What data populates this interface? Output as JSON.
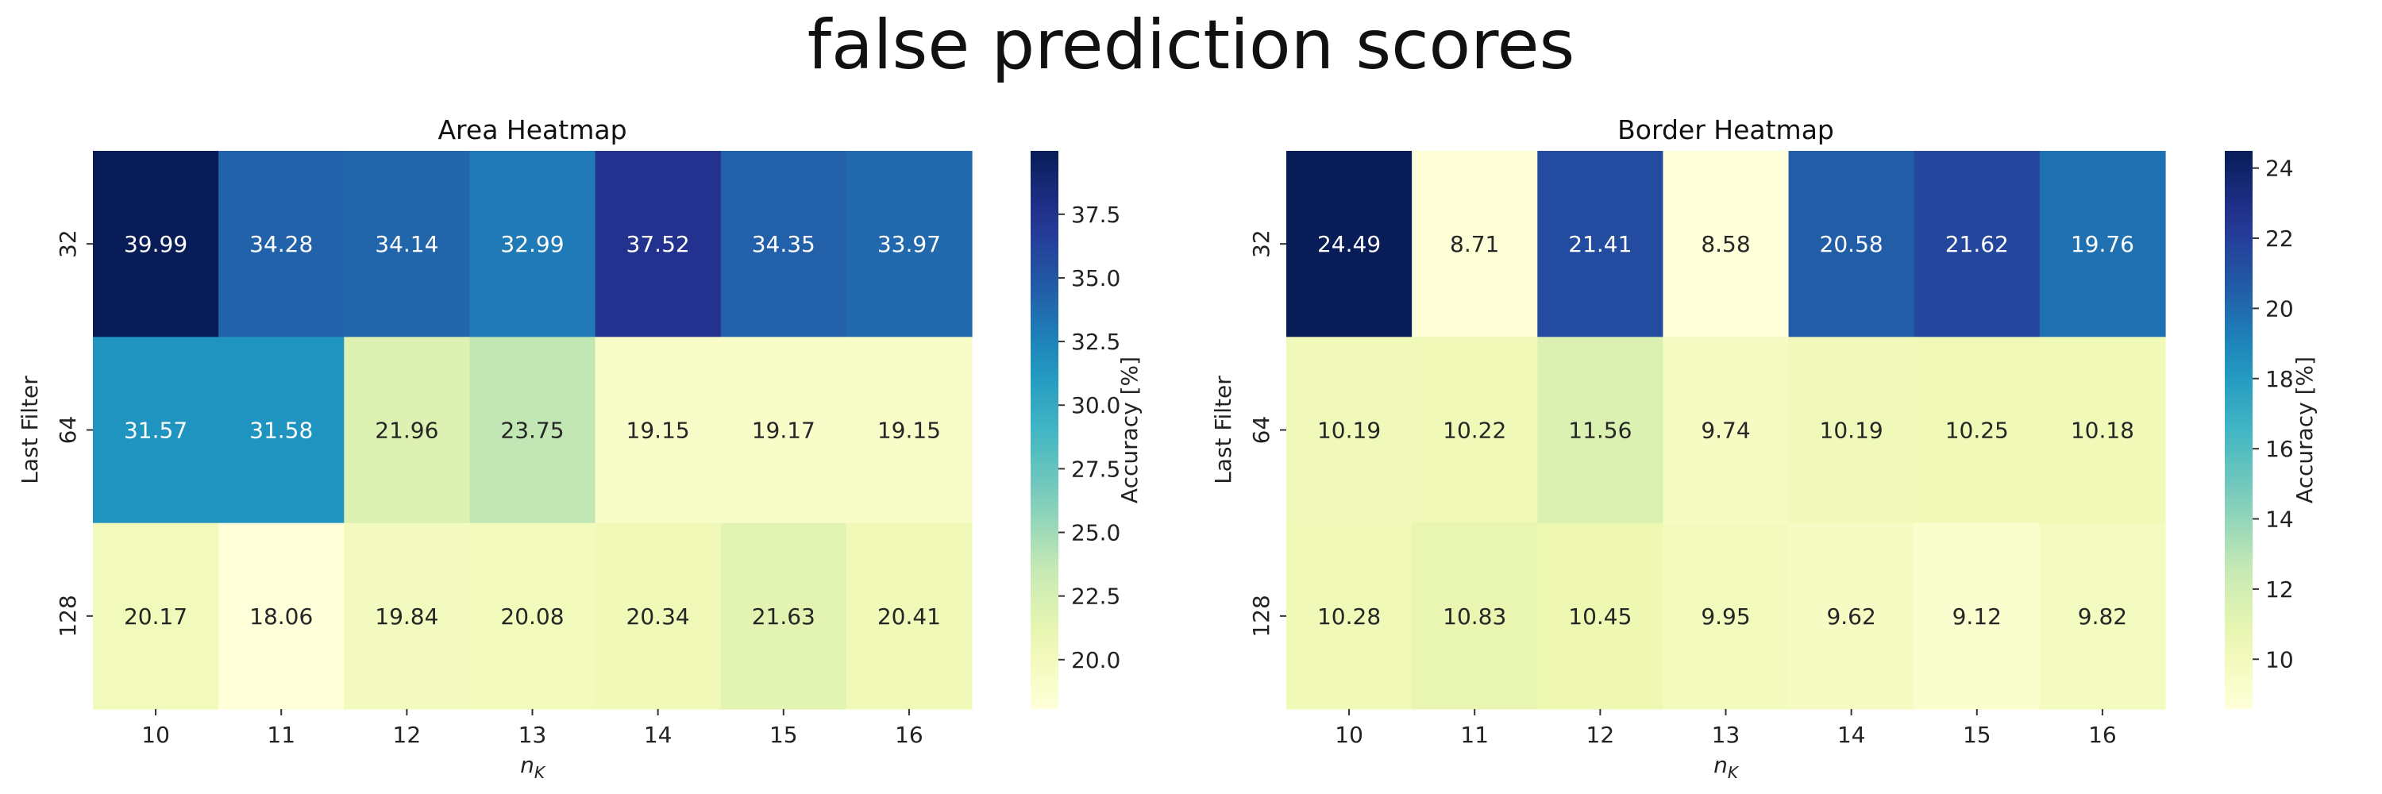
{
  "figure": {
    "title": "false prediction scores"
  },
  "chart_data": [
    {
      "type": "heatmap",
      "title": "Area Heatmap",
      "xlabel": "n",
      "xlabel_sub": "K",
      "ylabel": "Last Filter",
      "x_categories": [
        "10",
        "11",
        "12",
        "13",
        "14",
        "15",
        "16"
      ],
      "y_categories": [
        "32",
        "64",
        "128"
      ],
      "values": [
        [
          39.99,
          34.28,
          34.14,
          32.99,
          37.52,
          34.35,
          33.97
        ],
        [
          31.57,
          31.58,
          21.96,
          23.75,
          19.15,
          19.17,
          19.15
        ],
        [
          20.17,
          18.06,
          19.84,
          20.08,
          20.34,
          21.63,
          20.41
        ]
      ],
      "value_labels": [
        [
          "39.99",
          "34.28",
          "34.14",
          "32.99",
          "37.52",
          "34.35",
          "33.97"
        ],
        [
          "31.57",
          "31.58",
          "21.96",
          "23.75",
          "19.15",
          "19.17",
          "19.15"
        ],
        [
          "20.17",
          "18.06",
          "19.84",
          "20.08",
          "20.34",
          "21.63",
          "20.41"
        ]
      ],
      "colormap": "YlGnBu",
      "colorbar": {
        "label": "Accuracy [%]",
        "range": [
          18.06,
          39.99
        ],
        "ticks": [
          20.0,
          22.5,
          25.0,
          27.5,
          30.0,
          32.5,
          35.0,
          37.5
        ],
        "tick_labels": [
          "20.0",
          "22.5",
          "25.0",
          "27.5",
          "30.0",
          "32.5",
          "35.0",
          "37.5"
        ]
      }
    },
    {
      "type": "heatmap",
      "title": "Border Heatmap",
      "xlabel": "n",
      "xlabel_sub": "K",
      "ylabel": "Last Filter",
      "x_categories": [
        "10",
        "11",
        "12",
        "13",
        "14",
        "15",
        "16"
      ],
      "y_categories": [
        "32",
        "64",
        "128"
      ],
      "values": [
        [
          24.49,
          8.71,
          21.41,
          8.58,
          20.58,
          21.62,
          19.76
        ],
        [
          10.19,
          10.22,
          11.56,
          9.74,
          10.19,
          10.25,
          10.18
        ],
        [
          10.28,
          10.83,
          10.45,
          9.95,
          9.62,
          9.12,
          9.82
        ]
      ],
      "value_labels": [
        [
          "24.49",
          "8.71",
          "21.41",
          "8.58",
          "20.58",
          "21.62",
          "19.76"
        ],
        [
          "10.19",
          "10.22",
          "11.56",
          "9.74",
          "10.19",
          "10.25",
          "10.18"
        ],
        [
          "10.28",
          "10.83",
          "10.45",
          "9.95",
          "9.62",
          "9.12",
          "9.82"
        ]
      ],
      "colormap": "YlGnBu",
      "colorbar": {
        "label": "Accuracy [%]",
        "range": [
          8.58,
          24.49
        ],
        "ticks": [
          10,
          12,
          14,
          16,
          18,
          20,
          22,
          24
        ],
        "tick_labels": [
          "10",
          "12",
          "14",
          "16",
          "18",
          "20",
          "22",
          "24"
        ]
      }
    }
  ]
}
